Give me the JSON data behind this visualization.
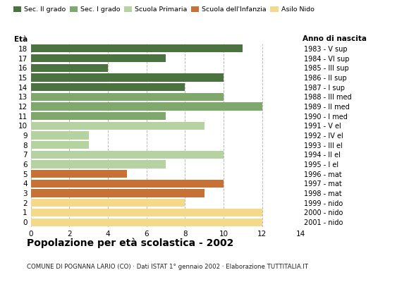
{
  "ages": [
    18,
    17,
    16,
    15,
    14,
    13,
    12,
    11,
    10,
    9,
    8,
    7,
    6,
    5,
    4,
    3,
    2,
    1,
    0
  ],
  "values": [
    11,
    7,
    4,
    10,
    8,
    10,
    12,
    7,
    9,
    3,
    3,
    10,
    7,
    5,
    10,
    9,
    8,
    12,
    12
  ],
  "anno_nascita": [
    "1983 - V sup",
    "1984 - VI sup",
    "1985 - III sup",
    "1986 - II sup",
    "1987 - I sup",
    "1988 - III med",
    "1989 - II med",
    "1990 - I med",
    "1991 - V el",
    "1992 - IV el",
    "1993 - III el",
    "1994 - II el",
    "1995 - I el",
    "1996 - mat",
    "1997 - mat",
    "1998 - mat",
    "1999 - nido",
    "2000 - nido",
    "2001 - nido"
  ],
  "categories": {
    "Sec. II grado": {
      "ages": [
        18,
        17,
        16,
        15,
        14
      ],
      "color": "#4a7340"
    },
    "Sec. I grado": {
      "ages": [
        13,
        12,
        11
      ],
      "color": "#7ea86c"
    },
    "Scuola Primaria": {
      "ages": [
        10,
        9,
        8,
        7,
        6
      ],
      "color": "#b5d3a0"
    },
    "Scuola dell'Infanzia": {
      "ages": [
        5,
        4,
        3
      ],
      "color": "#c87137"
    },
    "Asilo Nido": {
      "ages": [
        2,
        1,
        0
      ],
      "color": "#f5d98a"
    }
  },
  "title": "Popolazione per età scolastica - 2002",
  "subtitle": "COMUNE DI POGNANA LARIO (CO) · Dati ISTAT 1° gennaio 2002 · Elaborazione TUTTITALIA.IT",
  "label_eta": "Età",
  "label_anno": "Anno di nascita",
  "xlim": [
    0,
    14
  ],
  "xticks": [
    0,
    2,
    4,
    6,
    8,
    10,
    12,
    14
  ],
  "bg_color": "#ffffff",
  "bar_height": 0.82,
  "grid_color": "#bbbbbb"
}
